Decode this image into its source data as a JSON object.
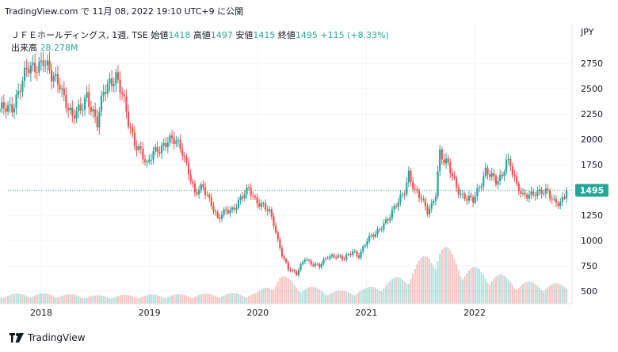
{
  "header": {
    "publisher": "TradingView.com",
    "published": "で 11月 08, 2022 19:10 UTC+9 に公開"
  },
  "legend": {
    "symbol": "ＪＦＥホールディングス, 1週, TSE",
    "open_label": "始値",
    "open": "1418",
    "high_label": "高値",
    "high": "1497",
    "low_label": "安値",
    "low": "1415",
    "close_label": "終値",
    "close": "1495",
    "change": "+115 (+8.33%)",
    "volume_label": "出来高",
    "volume": "28.278M"
  },
  "currency": "JPY",
  "last_price_label": "1495",
  "footer": {
    "brand": "TradingView"
  },
  "colors": {
    "up": "#26a69a",
    "down": "#ef5350",
    "grid": "#f0f3fa",
    "price_line": "#26a69a"
  },
  "chart_data": {
    "type": "candlestick",
    "interval": "1W",
    "currency": "JPY",
    "x_ticks": [
      "2018",
      "2019",
      "2020",
      "2021",
      "2022"
    ],
    "y_ticks": [
      500,
      750,
      1000,
      1250,
      1500,
      1750,
      2000,
      2250,
      2500,
      2750
    ],
    "ylim": [
      400,
      2860
    ],
    "last_price": 1495,
    "price_anchors": [
      [
        "2017-08-14",
        2270
      ],
      [
        "2017-09-25",
        2330
      ],
      [
        "2017-10-23",
        2520
      ],
      [
        "2017-11-13",
        2660
      ],
      [
        "2017-12-11",
        2720
      ],
      [
        "2018-01-08",
        2800
      ],
      [
        "2018-02-05",
        2590
      ],
      [
        "2018-03-05",
        2560
      ],
      [
        "2018-03-26",
        2380
      ],
      [
        "2018-04-16",
        2200
      ],
      [
        "2018-05-14",
        2290
      ],
      [
        "2018-06-04",
        2460
      ],
      [
        "2018-06-25",
        2260
      ],
      [
        "2018-07-09",
        2140
      ],
      [
        "2018-07-30",
        2450
      ],
      [
        "2018-08-20",
        2580
      ],
      [
        "2018-09-10",
        2640
      ],
      [
        "2018-10-01",
        2430
      ],
      [
        "2018-10-22",
        2150
      ],
      [
        "2018-11-12",
        1980
      ],
      [
        "2018-12-03",
        1900
      ],
      [
        "2018-12-24",
        1720
      ],
      [
        "2019-01-14",
        1860
      ],
      [
        "2019-02-11",
        1940
      ],
      [
        "2019-03-04",
        1990
      ],
      [
        "2019-04-01",
        1960
      ],
      [
        "2019-04-22",
        1890
      ],
      [
        "2019-05-13",
        1700
      ],
      [
        "2019-06-03",
        1450
      ],
      [
        "2019-07-01",
        1520
      ],
      [
        "2019-07-29",
        1380
      ],
      [
        "2019-08-19",
        1210
      ],
      [
        "2019-09-16",
        1280
      ],
      [
        "2019-10-07",
        1310
      ],
      [
        "2019-11-04",
        1420
      ],
      [
        "2019-12-02",
        1490
      ],
      [
        "2019-12-23",
        1400
      ],
      [
        "2020-01-20",
        1360
      ],
      [
        "2020-02-10",
        1270
      ],
      [
        "2020-02-24",
        1150
      ],
      [
        "2020-03-09",
        990
      ],
      [
        "2020-03-23",
        870
      ],
      [
        "2020-04-13",
        730
      ],
      [
        "2020-05-11",
        660
      ],
      [
        "2020-06-08",
        830
      ],
      [
        "2020-06-29",
        780
      ],
      [
        "2020-07-27",
        740
      ],
      [
        "2020-08-24",
        840
      ],
      [
        "2020-09-21",
        860
      ],
      [
        "2020-10-19",
        810
      ],
      [
        "2020-11-16",
        890
      ],
      [
        "2020-12-07",
        860
      ],
      [
        "2021-01-04",
        1000
      ],
      [
        "2021-02-01",
        1060
      ],
      [
        "2021-03-01",
        1180
      ],
      [
        "2021-03-22",
        1240
      ],
      [
        "2021-04-19",
        1370
      ],
      [
        "2021-05-10",
        1500
      ],
      [
        "2021-05-24",
        1680
      ],
      [
        "2021-06-14",
        1480
      ],
      [
        "2021-07-05",
        1400
      ],
      [
        "2021-07-26",
        1290
      ],
      [
        "2021-08-09",
        1360
      ],
      [
        "2021-08-23",
        1480
      ],
      [
        "2021-09-06",
        1860
      ],
      [
        "2021-09-20",
        1760
      ],
      [
        "2021-10-04",
        1740
      ],
      [
        "2021-10-25",
        1600
      ],
      [
        "2021-11-15",
        1460
      ],
      [
        "2021-12-06",
        1400
      ],
      [
        "2021-12-27",
        1390
      ],
      [
        "2022-01-17",
        1540
      ],
      [
        "2022-02-07",
        1700
      ],
      [
        "2022-02-28",
        1620
      ],
      [
        "2022-03-14",
        1560
      ],
      [
        "2022-04-04",
        1640
      ],
      [
        "2022-04-18",
        1820
      ],
      [
        "2022-05-02",
        1760
      ],
      [
        "2022-05-23",
        1520
      ],
      [
        "2022-06-13",
        1430
      ],
      [
        "2022-07-04",
        1470
      ],
      [
        "2022-07-25",
        1480
      ],
      [
        "2022-08-15",
        1460
      ],
      [
        "2022-09-05",
        1470
      ],
      [
        "2022-09-26",
        1400
      ],
      [
        "2022-10-17",
        1380
      ],
      [
        "2022-10-31",
        1420
      ],
      [
        "2022-11-07",
        1495
      ]
    ],
    "volume_anchors": [
      [
        "2017-08-14",
        0.14
      ],
      [
        "2018-01-01",
        0.15
      ],
      [
        "2018-07-01",
        0.12
      ],
      [
        "2019-01-01",
        0.13
      ],
      [
        "2019-07-01",
        0.14
      ],
      [
        "2020-01-01",
        0.16
      ],
      [
        "2020-03-16",
        0.42
      ],
      [
        "2020-06-01",
        0.26
      ],
      [
        "2020-10-01",
        0.18
      ],
      [
        "2021-01-01",
        0.22
      ],
      [
        "2021-05-10",
        0.42
      ],
      [
        "2021-09-06",
        0.9
      ],
      [
        "2021-12-01",
        0.55
      ],
      [
        "2022-03-01",
        0.46
      ],
      [
        "2022-06-01",
        0.32
      ],
      [
        "2022-11-07",
        0.28
      ]
    ]
  }
}
